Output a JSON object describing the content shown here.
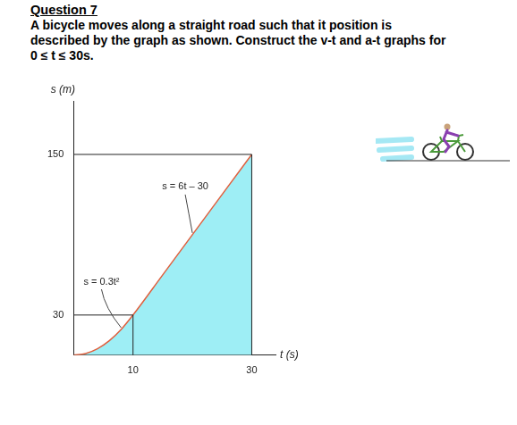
{
  "header": {
    "title": "Question 7",
    "lines": [
      "A bicycle moves along a straight road such that it position is",
      "described by the graph as shown. Construct the v-t and a-t graphs for",
      "0 ≤ t ≤ 30s."
    ]
  },
  "chart_data": {
    "type": "line",
    "x_label": "t (s)",
    "y_label": "s (m)",
    "x": [
      0,
      2,
      4,
      6,
      8,
      10,
      15,
      20,
      25,
      30
    ],
    "values": [
      0,
      1.2,
      4.8,
      10.8,
      19.2,
      30,
      60,
      90,
      120,
      150
    ],
    "color": "#9eeef5",
    "xlim": [
      0,
      34
    ],
    "xticks": [
      10,
      30
    ],
    "ylim": [
      0,
      190
    ],
    "yticks": [
      30,
      150
    ],
    "grid": false,
    "legend": "none",
    "annotations": [
      "s = 0.3t²",
      "s = 6t – 30"
    ]
  }
}
